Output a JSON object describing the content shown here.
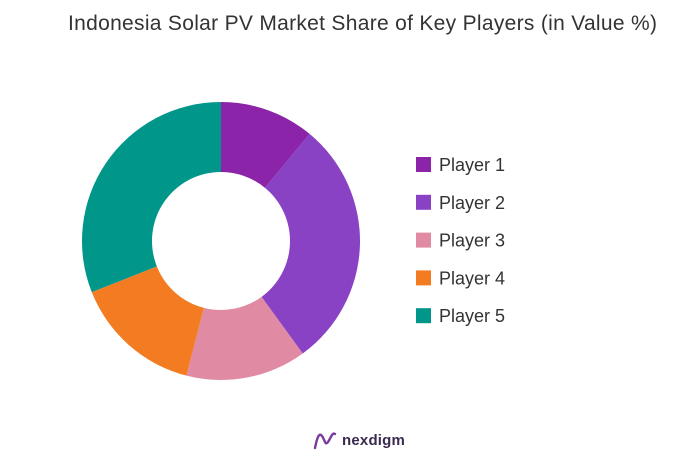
{
  "chart_data": {
    "type": "pie",
    "title": "Indonesia Solar PV Market Share of Key Players (in Value %)",
    "series": [
      {
        "name": "Player 1",
        "value": 11,
        "color": "#8b24a8"
      },
      {
        "name": "Player 2",
        "value": 29,
        "color": "#8a42c4"
      },
      {
        "name": "Player 3",
        "value": 14,
        "color": "#e08aa3"
      },
      {
        "name": "Player 4",
        "value": 15,
        "color": "#f37c22"
      },
      {
        "name": "Player 5",
        "value": 31,
        "color": "#00968a"
      }
    ],
    "donut": true,
    "legend_position": "right"
  },
  "brand": {
    "name": "nexdigm",
    "logo_icon": "nexdigm-logo-icon",
    "color": "#3b2a4f",
    "icon_color": "#7a3b9e"
  }
}
